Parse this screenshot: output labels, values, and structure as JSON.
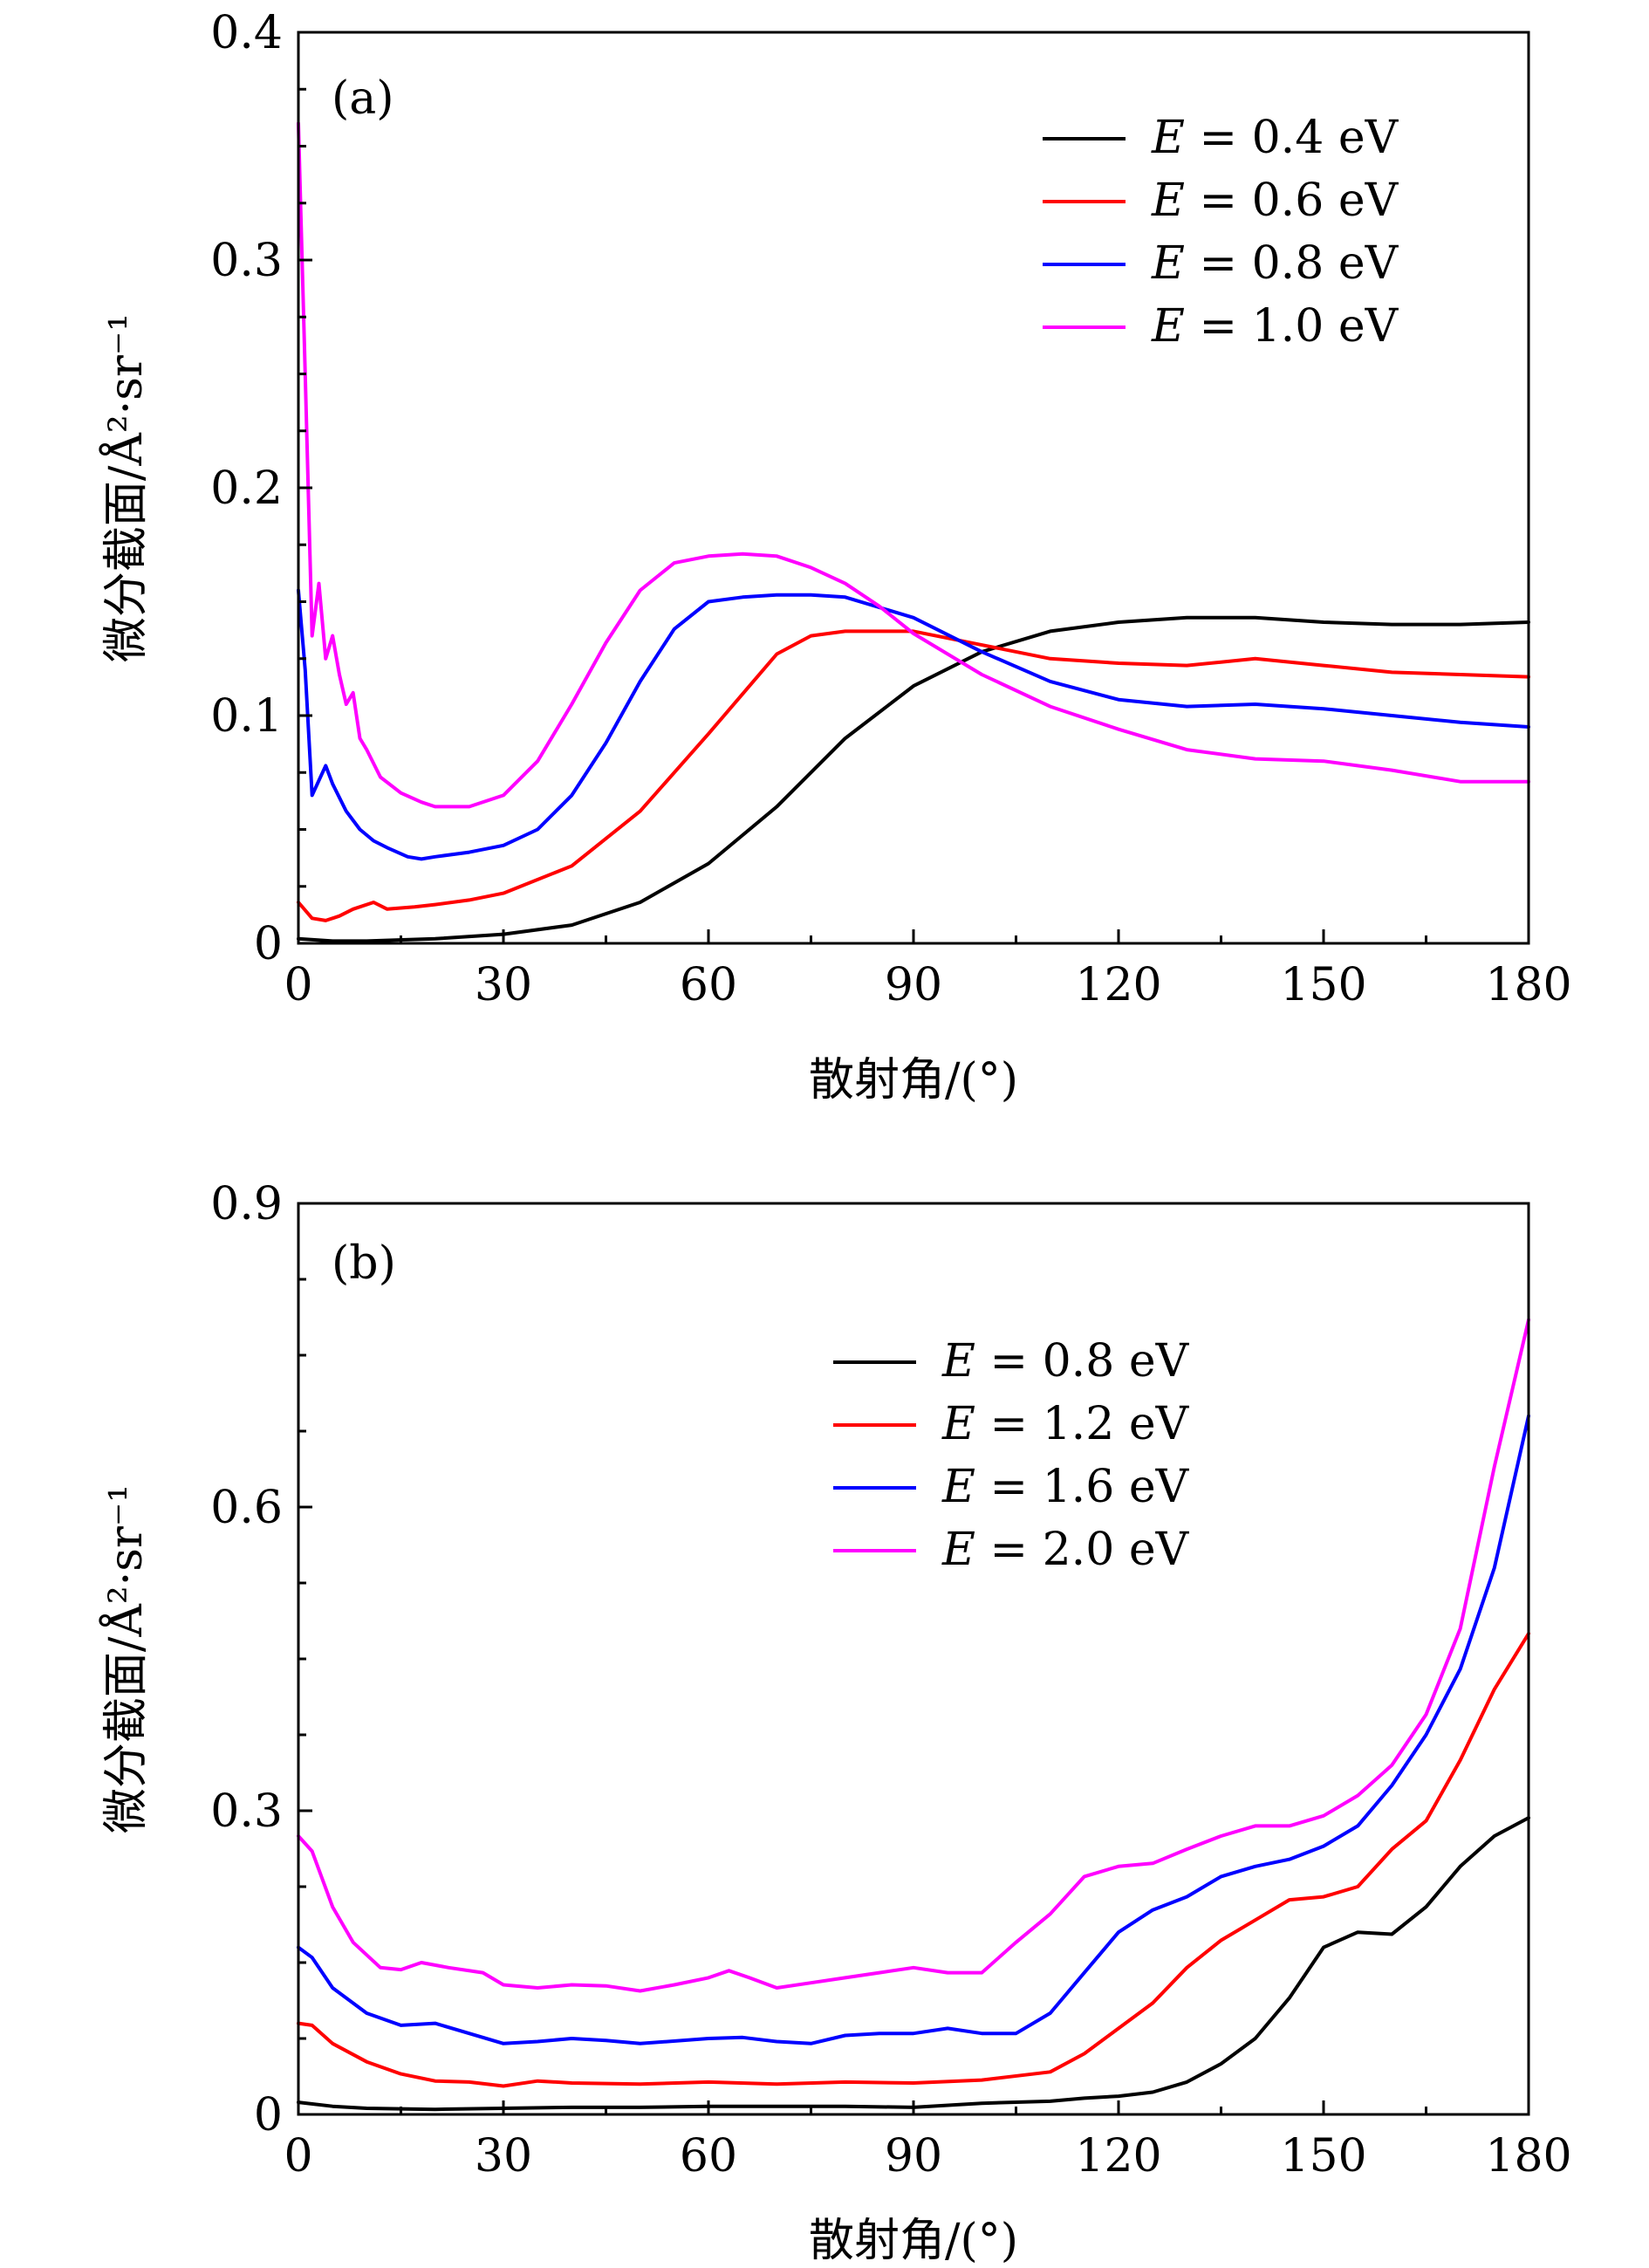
{
  "chart_data": [
    {
      "type": "line",
      "panel_label": "(a)",
      "xlabel": "散射角/(°)",
      "ylabel": "微分截面/Å²·sr⁻¹",
      "xlim": [
        0,
        180
      ],
      "ylim": [
        0,
        0.4
      ],
      "xticks": [
        0,
        30,
        60,
        90,
        120,
        150,
        180
      ],
      "xtick_labels": [
        "0",
        "30",
        "60",
        "90",
        "120",
        "150",
        "180"
      ],
      "yticks": [
        0,
        0.1,
        0.2,
        0.3,
        0.4
      ],
      "ytick_labels": [
        "0",
        "0.1",
        "0.2",
        "0.3",
        "0.4"
      ],
      "legend_position": "top-right",
      "series": [
        {
          "name": "E = 0.4 eV",
          "legend_prefix": "E",
          "legend_value": "0.4 eV",
          "color": "#000000",
          "x": [
            0,
            5,
            10,
            20,
            30,
            40,
            50,
            60,
            70,
            80,
            90,
            100,
            110,
            120,
            130,
            140,
            150,
            160,
            170,
            180
          ],
          "y": [
            0.002,
            0.001,
            0.001,
            0.002,
            0.004,
            0.008,
            0.018,
            0.035,
            0.06,
            0.09,
            0.113,
            0.128,
            0.137,
            0.141,
            0.143,
            0.143,
            0.141,
            0.14,
            0.14,
            0.141
          ]
        },
        {
          "name": "E = 0.6 eV",
          "legend_prefix": "E",
          "legend_value": "0.6 eV",
          "color": "#ff0000",
          "x": [
            0,
            2,
            4,
            6,
            8,
            11,
            13,
            17,
            20,
            25,
            30,
            40,
            50,
            60,
            70,
            75,
            80,
            90,
            100,
            110,
            120,
            130,
            140,
            150,
            160,
            170,
            180
          ],
          "y": [
            0.018,
            0.011,
            0.01,
            0.012,
            0.015,
            0.018,
            0.015,
            0.016,
            0.017,
            0.019,
            0.022,
            0.034,
            0.058,
            0.092,
            0.127,
            0.135,
            0.137,
            0.137,
            0.131,
            0.125,
            0.123,
            0.122,
            0.125,
            0.122,
            0.119,
            0.118,
            0.117
          ]
        },
        {
          "name": "E = 0.8 eV",
          "legend_prefix": "E",
          "legend_value": "0.8 eV",
          "color": "#0000ff",
          "x": [
            0,
            1,
            2,
            4,
            5,
            7,
            9,
            11,
            13,
            16,
            18,
            20,
            25,
            30,
            35,
            40,
            45,
            50,
            55,
            60,
            65,
            70,
            75,
            80,
            90,
            100,
            110,
            120,
            130,
            140,
            150,
            160,
            170,
            180
          ],
          "y": [
            0.155,
            0.12,
            0.065,
            0.078,
            0.07,
            0.058,
            0.05,
            0.045,
            0.042,
            0.038,
            0.037,
            0.038,
            0.04,
            0.043,
            0.05,
            0.065,
            0.088,
            0.115,
            0.138,
            0.15,
            0.152,
            0.153,
            0.153,
            0.152,
            0.143,
            0.128,
            0.115,
            0.107,
            0.104,
            0.105,
            0.103,
            0.1,
            0.097,
            0.095
          ]
        },
        {
          "name": "E = 1.0 eV",
          "legend_prefix": "E",
          "legend_value": "1.0 eV",
          "color": "#ff00ff",
          "x": [
            0,
            1,
            2,
            3,
            4,
            5,
            6,
            7,
            8,
            9,
            10,
            12,
            15,
            18,
            20,
            25,
            30,
            35,
            40,
            45,
            50,
            55,
            60,
            65,
            70,
            75,
            80,
            85,
            90,
            100,
            110,
            120,
            130,
            140,
            150,
            160,
            170,
            180
          ],
          "y": [
            0.36,
            0.25,
            0.135,
            0.158,
            0.125,
            0.135,
            0.118,
            0.105,
            0.11,
            0.09,
            0.085,
            0.073,
            0.066,
            0.062,
            0.06,
            0.06,
            0.065,
            0.08,
            0.105,
            0.132,
            0.155,
            0.167,
            0.17,
            0.171,
            0.17,
            0.165,
            0.158,
            0.148,
            0.136,
            0.118,
            0.104,
            0.094,
            0.085,
            0.081,
            0.08,
            0.076,
            0.071,
            0.071
          ]
        }
      ]
    },
    {
      "type": "line",
      "panel_label": "(b)",
      "xlabel": "散射角/(°)",
      "ylabel": "微分截面/Å²·sr⁻¹",
      "xlim": [
        0,
        180
      ],
      "ylim": [
        0,
        0.9
      ],
      "xticks": [
        0,
        30,
        60,
        90,
        120,
        150,
        180
      ],
      "xtick_labels": [
        "0",
        "30",
        "60",
        "90",
        "120",
        "150",
        "180"
      ],
      "yticks": [
        0,
        0.3,
        0.6,
        0.9
      ],
      "ytick_labels": [
        "0",
        "0.3",
        "0.6",
        "0.9"
      ],
      "legend_position": "top-right",
      "series": [
        {
          "name": "E = 0.8 eV",
          "legend_prefix": "E",
          "legend_value": "0.8 eV",
          "color": "#000000",
          "x": [
            0,
            5,
            10,
            20,
            30,
            40,
            50,
            60,
            70,
            80,
            90,
            100,
            110,
            115,
            120,
            125,
            130,
            135,
            140,
            145,
            150,
            155,
            160,
            165,
            170,
            175,
            180
          ],
          "y": [
            0.012,
            0.008,
            0.006,
            0.005,
            0.006,
            0.007,
            0.007,
            0.008,
            0.008,
            0.008,
            0.007,
            0.011,
            0.013,
            0.016,
            0.018,
            0.022,
            0.032,
            0.05,
            0.075,
            0.115,
            0.165,
            0.18,
            0.178,
            0.205,
            0.245,
            0.275,
            0.293
          ]
        },
        {
          "name": "E = 1.2 eV",
          "legend_prefix": "E",
          "legend_value": "1.2 eV",
          "color": "#ff0000",
          "x": [
            0,
            2,
            5,
            10,
            15,
            20,
            25,
            30,
            35,
            40,
            50,
            60,
            70,
            80,
            90,
            100,
            110,
            115,
            120,
            125,
            130,
            135,
            140,
            145,
            150,
            155,
            160,
            165,
            170,
            175,
            180
          ],
          "y": [
            0.09,
            0.088,
            0.07,
            0.052,
            0.04,
            0.033,
            0.032,
            0.028,
            0.033,
            0.031,
            0.03,
            0.032,
            0.03,
            0.032,
            0.031,
            0.034,
            0.042,
            0.06,
            0.085,
            0.11,
            0.145,
            0.172,
            0.192,
            0.212,
            0.215,
            0.225,
            0.262,
            0.29,
            0.35,
            0.42,
            0.475
          ]
        },
        {
          "name": "E = 1.6 eV",
          "legend_prefix": "E",
          "legend_value": "1.6 eV",
          "color": "#0000ff",
          "x": [
            0,
            2,
            5,
            10,
            15,
            20,
            25,
            30,
            35,
            40,
            45,
            50,
            60,
            65,
            70,
            75,
            80,
            85,
            90,
            95,
            100,
            105,
            110,
            115,
            120,
            125,
            130,
            135,
            140,
            145,
            150,
            155,
            160,
            165,
            170,
            175,
            180
          ],
          "y": [
            0.165,
            0.155,
            0.125,
            0.1,
            0.088,
            0.09,
            0.08,
            0.07,
            0.072,
            0.075,
            0.073,
            0.07,
            0.075,
            0.076,
            0.072,
            0.07,
            0.078,
            0.08,
            0.08,
            0.085,
            0.08,
            0.08,
            0.1,
            0.14,
            0.18,
            0.202,
            0.215,
            0.235,
            0.245,
            0.252,
            0.265,
            0.285,
            0.325,
            0.375,
            0.44,
            0.54,
            0.69
          ]
        },
        {
          "name": "E = 2.0 eV",
          "legend_prefix": "E",
          "legend_value": "2.0 eV",
          "color": "#ff00ff",
          "x": [
            0,
            2,
            5,
            8,
            12,
            15,
            18,
            22,
            27,
            30,
            35,
            40,
            45,
            50,
            55,
            60,
            63,
            66,
            70,
            75,
            80,
            85,
            90,
            95,
            100,
            105,
            110,
            115,
            120,
            125,
            130,
            135,
            140,
            145,
            150,
            155,
            160,
            165,
            170,
            175,
            180
          ],
          "y": [
            0.275,
            0.26,
            0.205,
            0.17,
            0.145,
            0.143,
            0.15,
            0.145,
            0.14,
            0.128,
            0.125,
            0.128,
            0.127,
            0.122,
            0.128,
            0.135,
            0.142,
            0.135,
            0.125,
            0.13,
            0.135,
            0.14,
            0.145,
            0.14,
            0.14,
            0.17,
            0.198,
            0.235,
            0.245,
            0.248,
            0.262,
            0.275,
            0.285,
            0.285,
            0.295,
            0.315,
            0.345,
            0.395,
            0.48,
            0.64,
            0.785
          ]
        }
      ]
    }
  ]
}
